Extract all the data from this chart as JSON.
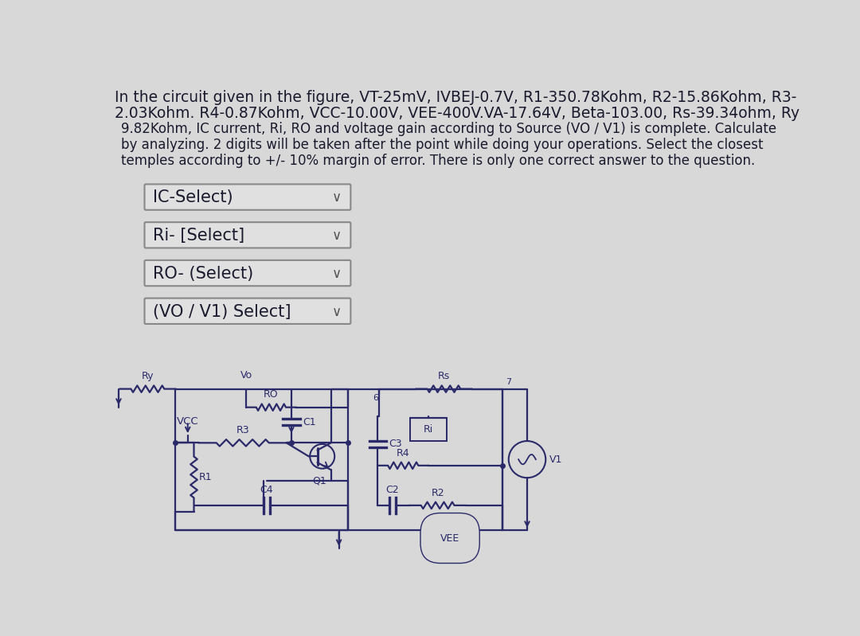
{
  "bg_color": "#d8d8d8",
  "panel_color": "#e8e8e8",
  "text_color": "#1a1a2e",
  "circuit_color": "#2a2a6a",
  "title_lines": [
    "In the circuit given in the figure, VT-25mV, IVBEJ-0.7V, R1-350.78Kohm, R2-15.86Kohm, R3-",
    "2.03Kohm. R4-0.87Kohm, VCC-10.00V, VEE-400V.VA-17.64V, Beta-103.00, Rs-39.34ohm, Ry",
    "9.82Kohm, IC current, Ri, RO and voltage gain according to Source (VO / V1) is complete. Calculate",
    "by analyzing. 2 digits will be taken after the point while doing your operations. Select the closest",
    "temples according to +/- 10% margin of error. There is only one correct answer to the question."
  ],
  "dropdown_labels": [
    "IC-Select)",
    "Ri- [Select]",
    "RO- (Select)",
    "(VO / V1) Select]"
  ],
  "title_fontsize": 13.5,
  "dd_fontsize": 15.0,
  "circ_fontsize": 9.0
}
